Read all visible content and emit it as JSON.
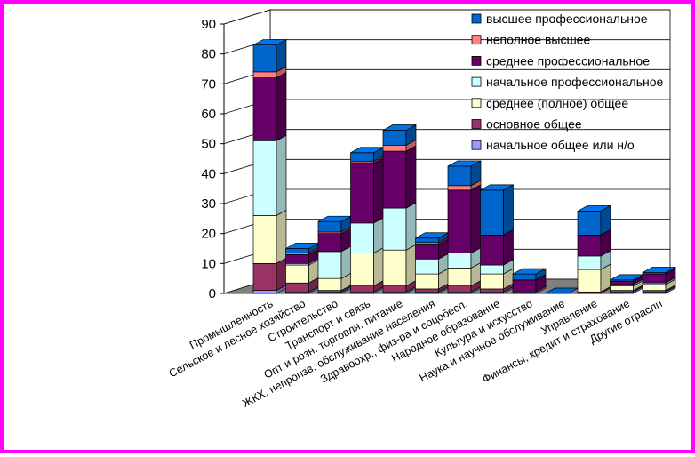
{
  "chart_data": {
    "type": "bar",
    "stacked": true,
    "three_d": true,
    "ylabel": "",
    "ylim": [
      0,
      90
    ],
    "yticks": [
      0,
      10,
      20,
      30,
      40,
      50,
      60,
      70,
      80,
      90
    ],
    "grid": true,
    "legend_position": "top-right",
    "categories": [
      "Промышленность",
      "Сельское и лесное хозяйство",
      "Строительство",
      "Транспорт и связь",
      "Опт и розн. торговля, питание",
      "ЖКХ, непроизв. обслуживание населения",
      "Здравоохр., физ-ра и соцобесп.",
      "Народное образование",
      "Культура и искусство",
      "Наука и научное обслуживание",
      "Управление",
      "Финансы, кредит и страхование",
      "Другие отрасли"
    ],
    "series": [
      {
        "name": "начальное общее или н/о",
        "color": "#9999ff",
        "values": [
          1,
          0.5,
          0.5,
          0.5,
          0.5,
          0.5,
          0.5,
          0.5,
          0.5,
          0,
          0,
          0.5,
          0.5
        ]
      },
      {
        "name": "основное общее",
        "color": "#993366",
        "values": [
          9,
          3,
          0.5,
          2,
          2,
          1,
          2,
          1,
          0,
          0,
          0.5,
          0.5,
          0.5
        ]
      },
      {
        "name": "среднее (полное) общее",
        "color": "#ffffcc",
        "values": [
          16,
          6,
          4,
          11,
          12,
          5,
          6,
          5,
          0,
          0,
          7.5,
          1.5,
          2
        ]
      },
      {
        "name": "начальное профессиональное",
        "color": "#ccffff",
        "values": [
          25,
          0.5,
          9,
          10,
          14,
          5,
          5,
          3,
          0,
          0,
          4.5,
          0.5,
          0.5
        ]
      },
      {
        "name": "среднее профессиональное",
        "color": "#660066",
        "values": [
          21,
          3,
          6,
          20,
          19,
          5,
          21,
          10,
          4,
          0,
          7,
          1,
          3
        ]
      },
      {
        "name": "неполное высшее",
        "color": "#ff8080",
        "values": [
          2,
          0.5,
          0.5,
          0.5,
          2,
          0.5,
          1.5,
          0,
          0,
          0,
          0,
          0,
          0
        ]
      },
      {
        "name": "высшее профессиональное",
        "color": "#0066cc",
        "values": [
          9,
          1.5,
          3.5,
          3,
          5,
          1.5,
          6.5,
          15,
          2,
          0,
          8,
          0.5,
          0.5
        ]
      }
    ]
  }
}
